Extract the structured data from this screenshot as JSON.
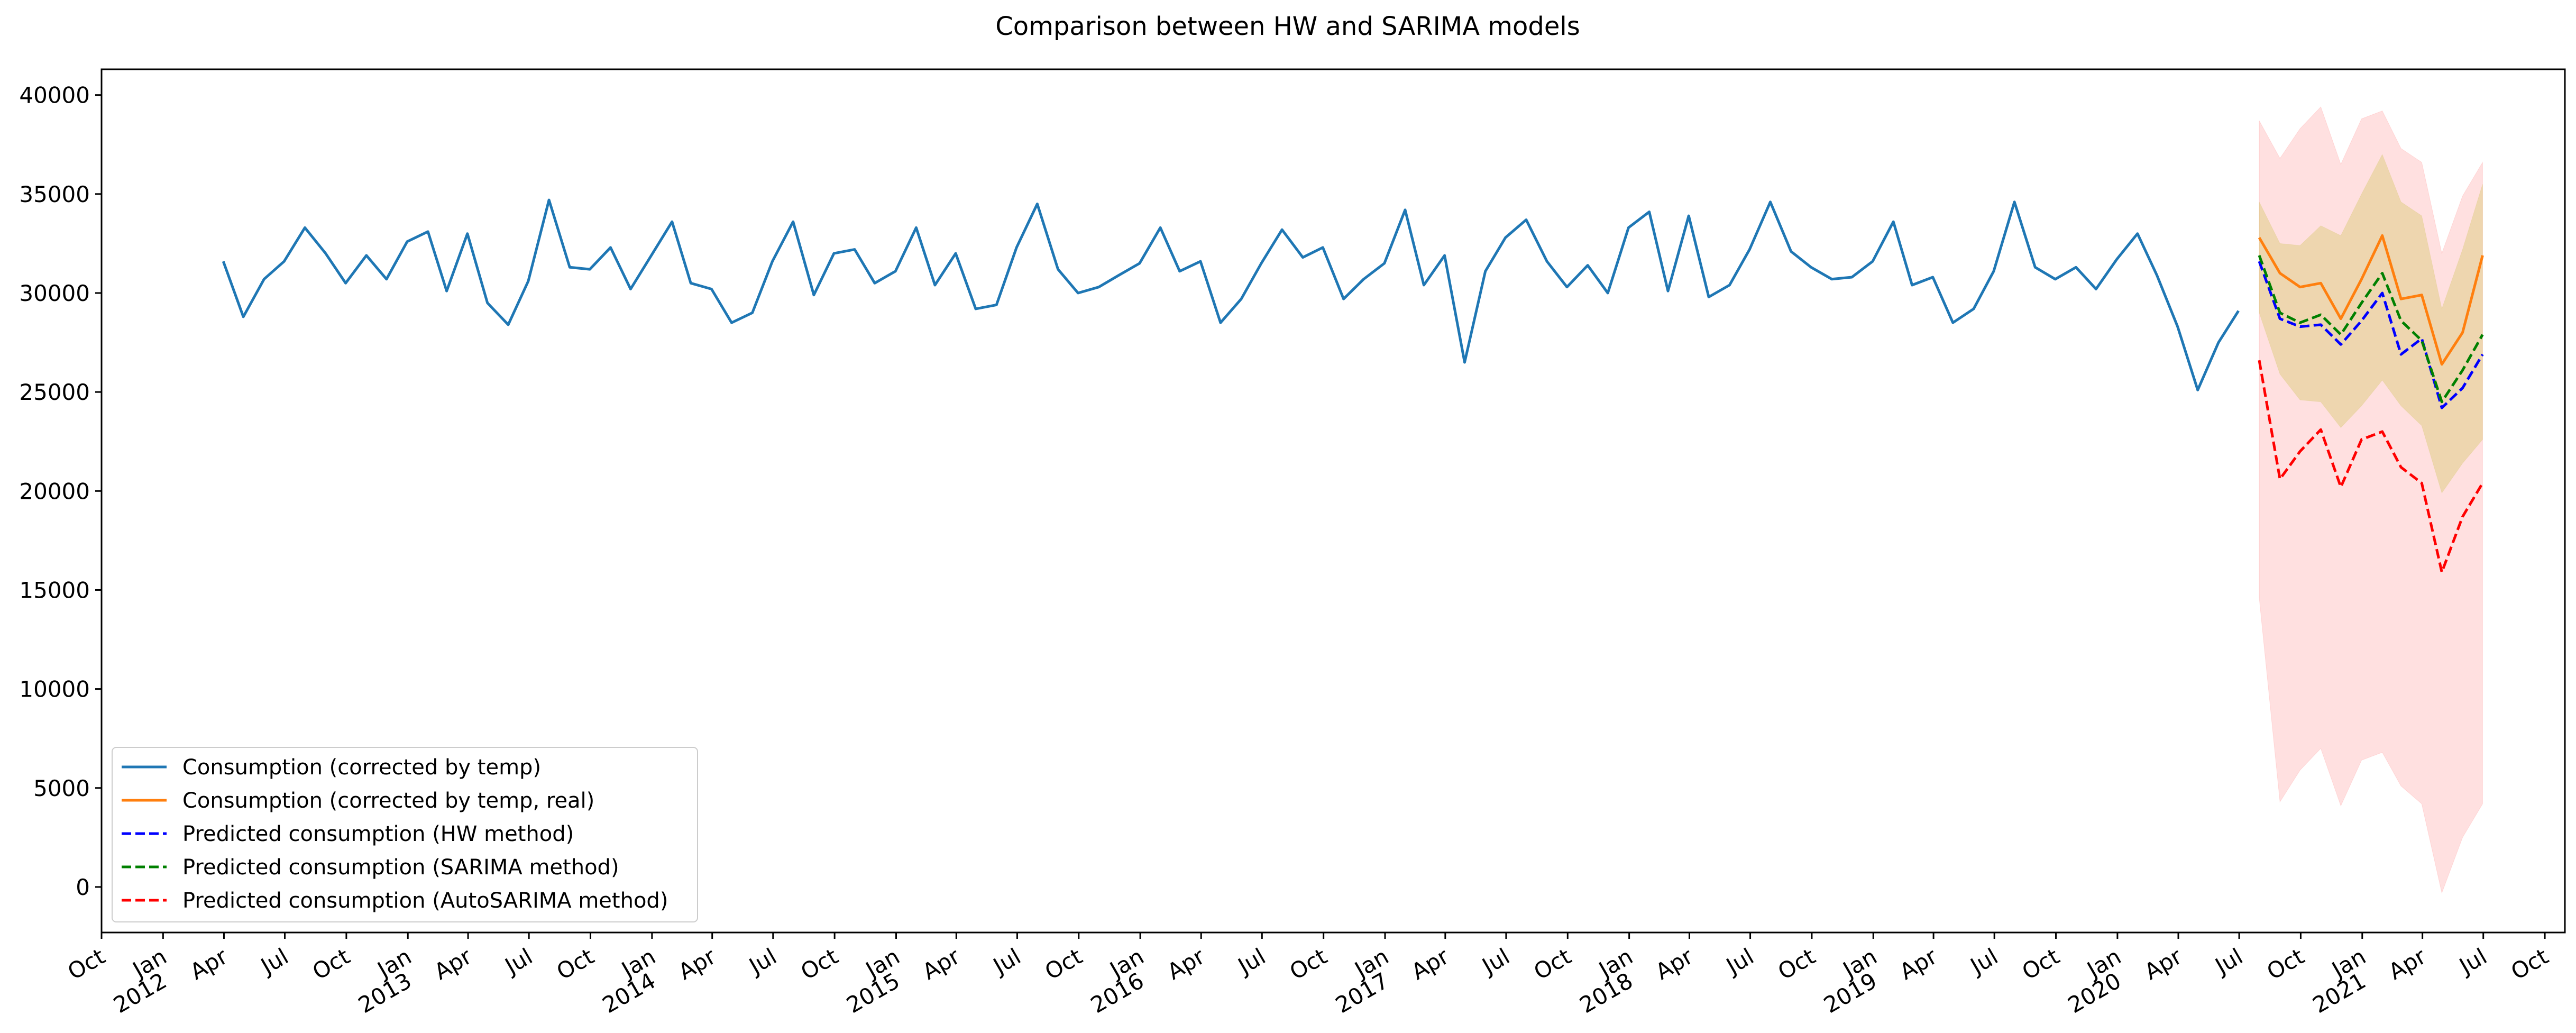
{
  "chart_data": {
    "type": "line",
    "title": "Comparison between HW and SARIMA models",
    "xlabel": "",
    "ylabel": "",
    "xlim": [
      "2011-10-01",
      "2021-10-31"
    ],
    "ylim": [
      -2300,
      41300
    ],
    "y_ticks": [
      0,
      5000,
      10000,
      15000,
      20000,
      25000,
      30000,
      35000,
      40000
    ],
    "x_ticks": [
      {
        "date": "2011-10-01",
        "label": "Oct",
        "year": ""
      },
      {
        "date": "2012-01-01",
        "label": "Jan",
        "year": "2012"
      },
      {
        "date": "2012-04-01",
        "label": "Apr",
        "year": ""
      },
      {
        "date": "2012-07-01",
        "label": "Jul",
        "year": ""
      },
      {
        "date": "2012-10-01",
        "label": "Oct",
        "year": ""
      },
      {
        "date": "2013-01-01",
        "label": "Jan",
        "year": "2013"
      },
      {
        "date": "2013-04-01",
        "label": "Apr",
        "year": ""
      },
      {
        "date": "2013-07-01",
        "label": "Jul",
        "year": ""
      },
      {
        "date": "2013-10-01",
        "label": "Oct",
        "year": ""
      },
      {
        "date": "2014-01-01",
        "label": "Jan",
        "year": "2014"
      },
      {
        "date": "2014-04-01",
        "label": "Apr",
        "year": ""
      },
      {
        "date": "2014-07-01",
        "label": "Jul",
        "year": ""
      },
      {
        "date": "2014-10-01",
        "label": "Oct",
        "year": ""
      },
      {
        "date": "2015-01-01",
        "label": "Jan",
        "year": "2015"
      },
      {
        "date": "2015-04-01",
        "label": "Apr",
        "year": ""
      },
      {
        "date": "2015-07-01",
        "label": "Jul",
        "year": ""
      },
      {
        "date": "2015-10-01",
        "label": "Oct",
        "year": ""
      },
      {
        "date": "2016-01-01",
        "label": "Jan",
        "year": "2016"
      },
      {
        "date": "2016-04-01",
        "label": "Apr",
        "year": ""
      },
      {
        "date": "2016-07-01",
        "label": "Jul",
        "year": ""
      },
      {
        "date": "2016-10-01",
        "label": "Oct",
        "year": ""
      },
      {
        "date": "2017-01-01",
        "label": "Jan",
        "year": "2017"
      },
      {
        "date": "2017-04-01",
        "label": "Apr",
        "year": ""
      },
      {
        "date": "2017-07-01",
        "label": "Jul",
        "year": ""
      },
      {
        "date": "2017-10-01",
        "label": "Oct",
        "year": ""
      },
      {
        "date": "2018-01-01",
        "label": "Jan",
        "year": "2018"
      },
      {
        "date": "2018-04-01",
        "label": "Apr",
        "year": ""
      },
      {
        "date": "2018-07-01",
        "label": "Jul",
        "year": ""
      },
      {
        "date": "2018-10-01",
        "label": "Oct",
        "year": ""
      },
      {
        "date": "2019-01-01",
        "label": "Jan",
        "year": "2019"
      },
      {
        "date": "2019-04-01",
        "label": "Apr",
        "year": ""
      },
      {
        "date": "2019-07-01",
        "label": "Jul",
        "year": ""
      },
      {
        "date": "2019-10-01",
        "label": "Oct",
        "year": ""
      },
      {
        "date": "2020-01-01",
        "label": "Jan",
        "year": "2020"
      },
      {
        "date": "2020-04-01",
        "label": "Apr",
        "year": ""
      },
      {
        "date": "2020-07-01",
        "label": "Jul",
        "year": ""
      },
      {
        "date": "2020-10-01",
        "label": "Oct",
        "year": ""
      },
      {
        "date": "2021-01-01",
        "label": "Jan",
        "year": "2021"
      },
      {
        "date": "2021-04-01",
        "label": "Apr",
        "year": ""
      },
      {
        "date": "2021-07-01",
        "label": "Jul",
        "year": ""
      },
      {
        "date": "2021-10-01",
        "label": "Oct",
        "year": ""
      }
    ],
    "grid": false,
    "legend_position": "lower-left",
    "series": [
      {
        "name": "Consumption (corrected by temp)",
        "color": "#1f77b4",
        "style": "solid",
        "start": "2012-03-01",
        "values": [
          31600,
          28800,
          30700,
          31600,
          33300,
          32000,
          30500,
          31900,
          30700,
          32600,
          33100,
          30100,
          33000,
          29500,
          28400,
          30600,
          34700,
          31300,
          31200,
          32300,
          30200,
          31900,
          33600,
          30500,
          30200,
          28500,
          29000,
          31600,
          33600,
          29900,
          32000,
          32200,
          30500,
          31100,
          33300,
          30400,
          32000,
          29200,
          29400,
          32300,
          34500,
          31200,
          30000,
          30300,
          30900,
          31500,
          33300,
          31100,
          31600,
          28500,
          29700,
          31500,
          33200,
          31800,
          32300,
          29700,
          30700,
          31500,
          34200,
          30400,
          31900,
          26500,
          31100,
          32800,
          33700,
          31600,
          30300,
          31400,
          30000,
          33300,
          34100,
          30100,
          33900,
          29800,
          30400,
          32200,
          34600,
          32100,
          31300,
          30700,
          30800,
          31600,
          33600,
          30400,
          30800,
          28500,
          29200,
          31100,
          34600,
          31300,
          30700,
          31300,
          30200,
          31700,
          33000,
          30900,
          28300,
          25100,
          27500,
          29100
        ]
      },
      {
        "name": "Consumption (corrected by temp, real)",
        "color": "#ff7f0e",
        "style": "solid",
        "start": "2020-07-01",
        "values": [
          32800,
          31000,
          30300,
          30500,
          28700,
          30700,
          32900,
          29700,
          29900,
          26400,
          28000,
          31900
        ]
      },
      {
        "name": "Predicted consumption (HW method)",
        "color": "#0000ff",
        "style": "dashed",
        "start": "2020-07-01",
        "values": [
          31600,
          28700,
          28300,
          28400,
          27400,
          28600,
          30000,
          26900,
          27700,
          24200,
          25200,
          26900
        ]
      },
      {
        "name": "Predicted consumption (SARIMA method)",
        "color": "#008000",
        "style": "dashed",
        "start": "2020-07-01",
        "values": [
          31900,
          29000,
          28500,
          28900,
          27900,
          29500,
          31000,
          28600,
          27600,
          24500,
          26100,
          27900
        ]
      },
      {
        "name": "Predicted consumption (AutoSARIMA method)",
        "color": "#ff0000",
        "style": "dashed",
        "start": "2020-07-01",
        "values": [
          26600,
          20600,
          22000,
          23100,
          20200,
          22600,
          23000,
          21200,
          20400,
          15900,
          18700,
          20400
        ]
      }
    ],
    "bands": [
      {
        "color": "#ff0000",
        "opacity": 0.12,
        "start": "2020-07-01",
        "lower": [
          14600,
          4300,
          5900,
          7000,
          4100,
          6400,
          6800,
          5100,
          4200,
          -300,
          2500,
          4200
        ],
        "upper": [
          38700,
          36800,
          38300,
          39400,
          36500,
          38800,
          39200,
          37300,
          36600,
          32000,
          34900,
          36600
        ]
      },
      {
        "color": "#b0b000",
        "opacity": 0.22,
        "start": "2020-07-01",
        "lower": [
          29000,
          25900,
          24600,
          24500,
          23200,
          24300,
          25600,
          24300,
          23300,
          19900,
          21400,
          22600
        ],
        "upper": [
          34600,
          32500,
          32400,
          33400,
          32900,
          35000,
          37000,
          34600,
          33900,
          29200,
          32200,
          35500
        ]
      }
    ]
  }
}
